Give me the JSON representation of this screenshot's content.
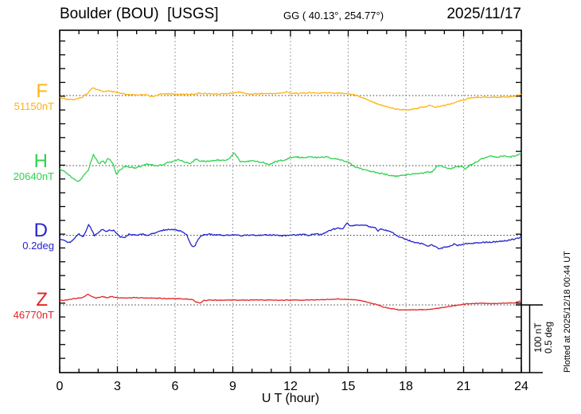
{
  "header": {
    "title": "Boulder (BOU)  [USGS]",
    "coords": "GG ( 40.13°, 254.77°)",
    "date": "2025/11/17"
  },
  "footer_note": "Plotted at 2025/12/18 00:44 UT",
  "chart_data": {
    "type": "line",
    "title": "Boulder (BOU) [USGS] magnetogram 2025/11/17",
    "xlabel": "U T (hour)",
    "x_range": [
      0,
      24
    ],
    "x_major_ticks": [
      0,
      3,
      6,
      9,
      12,
      15,
      18,
      21,
      24
    ],
    "x_tick_labels": [
      "0",
      "3",
      "6",
      "9",
      "12",
      "15",
      "18",
      "21",
      "24"
    ],
    "grid_hours": [
      3,
      6,
      9,
      12,
      15,
      18,
      21
    ],
    "y_tick_interval_nT": 20,
    "scale_bar": {
      "labels": [
        "100 nT",
        "0.5 deg"
      ],
      "nT": 100,
      "deg": 0.5
    },
    "channels": [
      {
        "id": "F",
        "label": "F",
        "baseline_label": "51150nT",
        "baseline_value": 51150,
        "unit": "nT",
        "color": "#ffb312",
        "points": [
          [
            0,
            -2.9
          ],
          [
            0.4,
            -5.3
          ],
          [
            0.8,
            -5.9
          ],
          [
            1.1,
            -3.5
          ],
          [
            1.4,
            2.4
          ],
          [
            1.7,
            11.8
          ],
          [
            1.9,
            9.4
          ],
          [
            2.2,
            5.9
          ],
          [
            2.5,
            6.5
          ],
          [
            2.8,
            5.3
          ],
          [
            3.1,
            3.5
          ],
          [
            3.5,
            1.2
          ],
          [
            4,
            0.6
          ],
          [
            4.4,
            1.8
          ],
          [
            4.8,
            -1.8
          ],
          [
            5.2,
            1.8
          ],
          [
            5.6,
            2.9
          ],
          [
            6,
            1.8
          ],
          [
            6.5,
            1.8
          ],
          [
            7,
            2.4
          ],
          [
            7.4,
            3.5
          ],
          [
            7.8,
            2.4
          ],
          [
            8.2,
            2.4
          ],
          [
            8.6,
            2.9
          ],
          [
            9,
            3.5
          ],
          [
            9.4,
            5.3
          ],
          [
            9.7,
            2.4
          ],
          [
            10,
            2.4
          ],
          [
            10.5,
            2.9
          ],
          [
            11,
            2.9
          ],
          [
            11.5,
            3.5
          ],
          [
            11.8,
            5.3
          ],
          [
            12,
            3.5
          ],
          [
            12.5,
            3.5
          ],
          [
            13,
            4.1
          ],
          [
            13.5,
            3.5
          ],
          [
            14,
            4.1
          ],
          [
            14.5,
            3.5
          ],
          [
            15,
            2.9
          ],
          [
            15.3,
            1.2
          ],
          [
            15.6,
            -1.2
          ],
          [
            16,
            -5.9
          ],
          [
            16.5,
            -11.8
          ],
          [
            17,
            -16.5
          ],
          [
            17.4,
            -19.4
          ],
          [
            17.8,
            -21.2
          ],
          [
            18.2,
            -20.6
          ],
          [
            18.6,
            -18.8
          ],
          [
            19,
            -16.5
          ],
          [
            19.2,
            -14.7
          ],
          [
            19.5,
            -17.1
          ],
          [
            19.9,
            -15.3
          ],
          [
            20.3,
            -12.4
          ],
          [
            20.7,
            -8.8
          ],
          [
            21.1,
            -5.6
          ],
          [
            21.5,
            -2.9
          ],
          [
            22,
            -2.1
          ],
          [
            22.4,
            -2.7
          ],
          [
            22.8,
            -2.4
          ],
          [
            23.2,
            -1.8
          ],
          [
            23.6,
            -1.2
          ],
          [
            24,
            2.4
          ]
        ]
      },
      {
        "id": "H",
        "label": "H",
        "baseline_label": "20640nT",
        "baseline_value": 20640,
        "unit": "nT",
        "color": "#2fd24f",
        "points": [
          [
            0,
            -4.7
          ],
          [
            0.3,
            -9.4
          ],
          [
            0.6,
            -16.5
          ],
          [
            0.9,
            -23.5
          ],
          [
            1.1,
            -20
          ],
          [
            1.3,
            -11.8
          ],
          [
            1.5,
            -7.1
          ],
          [
            1.6,
            3.5
          ],
          [
            1.75,
            16.5
          ],
          [
            1.9,
            9.4
          ],
          [
            2.05,
            2.4
          ],
          [
            2.2,
            7.1
          ],
          [
            2.35,
            3.5
          ],
          [
            2.5,
            10.6
          ],
          [
            2.65,
            7.1
          ],
          [
            2.8,
            0
          ],
          [
            2.95,
            -12.9
          ],
          [
            3.1,
            -7.1
          ],
          [
            3.3,
            -2.4
          ],
          [
            3.5,
            -1.2
          ],
          [
            3.7,
            -2.4
          ],
          [
            3.9,
            -3.5
          ],
          [
            4.1,
            -2.4
          ],
          [
            4.3,
            0
          ],
          [
            4.5,
            2.4
          ],
          [
            4.7,
            1.2
          ],
          [
            5,
            0
          ],
          [
            5.3,
            1.2
          ],
          [
            5.6,
            4.7
          ],
          [
            5.9,
            5.9
          ],
          [
            6.2,
            9.4
          ],
          [
            6.5,
            4.7
          ],
          [
            6.8,
            2.4
          ],
          [
            7.1,
            10.6
          ],
          [
            7.3,
            7.1
          ],
          [
            7.6,
            5.9
          ],
          [
            7.9,
            7.1
          ],
          [
            8.2,
            8.2
          ],
          [
            8.5,
            8.2
          ],
          [
            8.8,
            9.4
          ],
          [
            9.05,
            18.8
          ],
          [
            9.2,
            14.1
          ],
          [
            9.4,
            5.9
          ],
          [
            9.7,
            5.9
          ],
          [
            10,
            7.1
          ],
          [
            10.3,
            5.9
          ],
          [
            10.6,
            4.7
          ],
          [
            10.9,
            1.2
          ],
          [
            11.1,
            4.7
          ],
          [
            11.4,
            7.1
          ],
          [
            11.7,
            8.2
          ],
          [
            12,
            11.8
          ],
          [
            12.3,
            12.9
          ],
          [
            12.6,
            11.8
          ],
          [
            13,
            12.9
          ],
          [
            13.4,
            11.8
          ],
          [
            13.8,
            12.9
          ],
          [
            14.2,
            10.6
          ],
          [
            14.6,
            8.2
          ],
          [
            15,
            4.7
          ],
          [
            15.2,
            1.2
          ],
          [
            15.5,
            -3.5
          ],
          [
            16,
            -7.1
          ],
          [
            16.5,
            -10.6
          ],
          [
            17,
            -13.5
          ],
          [
            17.4,
            -15.9
          ],
          [
            17.8,
            -14.7
          ],
          [
            18.2,
            -12.9
          ],
          [
            18.6,
            -11.8
          ],
          [
            19,
            -10.6
          ],
          [
            19.4,
            -8.8
          ],
          [
            19.6,
            -1.2
          ],
          [
            19.8,
            -0.6
          ],
          [
            20,
            -2.9
          ],
          [
            20.3,
            -4.7
          ],
          [
            20.6,
            -2.4
          ],
          [
            20.9,
            -1.2
          ],
          [
            21.1,
            -4.7
          ],
          [
            21.3,
            0
          ],
          [
            21.6,
            4.7
          ],
          [
            21.9,
            9.4
          ],
          [
            22.2,
            12.9
          ],
          [
            22.5,
            14.1
          ],
          [
            22.8,
            12.4
          ],
          [
            23.1,
            14.7
          ],
          [
            23.4,
            12.9
          ],
          [
            23.7,
            14.1
          ],
          [
            24,
            18.8
          ]
        ]
      },
      {
        "id": "D",
        "label": "D",
        "baseline_label": "0.2deg",
        "baseline_value": 0.2,
        "unit": "deg",
        "color": "#2323cc",
        "points": [
          [
            0,
            -0.026
          ],
          [
            0.3,
            -0.044
          ],
          [
            0.55,
            -0.056
          ],
          [
            0.8,
            -0.015
          ],
          [
            1,
            0.009
          ],
          [
            1.2,
            -0.012
          ],
          [
            1.35,
            0.021
          ],
          [
            1.5,
            0.079
          ],
          [
            1.65,
            0.044
          ],
          [
            1.8,
            -0.003
          ],
          [
            2,
            0.015
          ],
          [
            2.2,
            0.044
          ],
          [
            2.4,
            0.026
          ],
          [
            2.6,
            0.038
          ],
          [
            2.8,
            0.035
          ],
          [
            3,
            0.009
          ],
          [
            3.15,
            -0.012
          ],
          [
            3.4,
            -0.015
          ],
          [
            3.6,
            0.009
          ],
          [
            3.8,
            0.003
          ],
          [
            4,
            0
          ],
          [
            4.3,
            0.009
          ],
          [
            4.6,
            0
          ],
          [
            4.9,
            0.015
          ],
          [
            5.2,
            0.032
          ],
          [
            5.5,
            0.041
          ],
          [
            5.8,
            0.044
          ],
          [
            6.1,
            0.038
          ],
          [
            6.4,
            0.026
          ],
          [
            6.6,
            0.003
          ],
          [
            6.75,
            -0.044
          ],
          [
            6.9,
            -0.085
          ],
          [
            7.05,
            -0.074
          ],
          [
            7.2,
            -0.026
          ],
          [
            7.35,
            -0.003
          ],
          [
            7.5,
            0.003
          ],
          [
            7.8,
            0.006
          ],
          [
            8.1,
            0.003
          ],
          [
            8.5,
            0
          ],
          [
            9,
            0.003
          ],
          [
            9.5,
            -0.003
          ],
          [
            10,
            0.003
          ],
          [
            10.5,
            0
          ],
          [
            11,
            0.003
          ],
          [
            11.5,
            -0.003
          ],
          [
            12,
            0
          ],
          [
            12.3,
            0.003
          ],
          [
            12.6,
            0.006
          ],
          [
            13,
            0
          ],
          [
            13.3,
            0.012
          ],
          [
            13.6,
            0.003
          ],
          [
            13.9,
            0.026
          ],
          [
            14.2,
            0.044
          ],
          [
            14.5,
            0.053
          ],
          [
            14.7,
            0.044
          ],
          [
            14.95,
            0.091
          ],
          [
            15.1,
            0.068
          ],
          [
            15.3,
            0.074
          ],
          [
            15.5,
            0.076
          ],
          [
            15.8,
            0.074
          ],
          [
            16.1,
            0.065
          ],
          [
            16.4,
            0.056
          ],
          [
            16.55,
            0.032
          ],
          [
            16.7,
            0.047
          ],
          [
            17,
            0.035
          ],
          [
            17.3,
            0.018
          ],
          [
            17.6,
            -0.009
          ],
          [
            17.9,
            -0.026
          ],
          [
            18.2,
            -0.041
          ],
          [
            18.5,
            -0.053
          ],
          [
            18.8,
            -0.062
          ],
          [
            19,
            -0.071
          ],
          [
            19.15,
            -0.079
          ],
          [
            19.3,
            -0.071
          ],
          [
            19.5,
            -0.079
          ],
          [
            19.7,
            -0.1
          ],
          [
            19.9,
            -0.094
          ],
          [
            20.1,
            -0.085
          ],
          [
            20.4,
            -0.076
          ],
          [
            20.5,
            -0.065
          ],
          [
            20.7,
            -0.074
          ],
          [
            21,
            -0.065
          ],
          [
            21.3,
            -0.059
          ],
          [
            21.7,
            -0.056
          ],
          [
            22,
            -0.053
          ],
          [
            22.4,
            -0.05
          ],
          [
            22.8,
            -0.047
          ],
          [
            23.2,
            -0.041
          ],
          [
            23.6,
            -0.029
          ],
          [
            24,
            -0.015
          ]
        ]
      },
      {
        "id": "Z",
        "label": "Z",
        "baseline_label": "46770nT",
        "baseline_value": 46770,
        "unit": "nT",
        "color": "#e32222",
        "points": [
          [
            0,
            6.5
          ],
          [
            0.4,
            7.6
          ],
          [
            0.8,
            9.4
          ],
          [
            1.2,
            11.2
          ],
          [
            1.5,
            15.9
          ],
          [
            1.7,
            11.8
          ],
          [
            1.9,
            10
          ],
          [
            2.2,
            12.4
          ],
          [
            2.5,
            10.6
          ],
          [
            2.7,
            12.4
          ],
          [
            3,
            10.6
          ],
          [
            3.4,
            10
          ],
          [
            3.8,
            10.6
          ],
          [
            4.2,
            10.6
          ],
          [
            4.6,
            10
          ],
          [
            5,
            10
          ],
          [
            5.5,
            9.4
          ],
          [
            6,
            9.4
          ],
          [
            6.5,
            8.8
          ],
          [
            6.9,
            8.2
          ],
          [
            7.1,
            4.1
          ],
          [
            7.3,
            2.9
          ],
          [
            7.5,
            6.5
          ],
          [
            7.8,
            7.1
          ],
          [
            8.2,
            7.1
          ],
          [
            8.6,
            7.1
          ],
          [
            9,
            7.1
          ],
          [
            9.5,
            7.1
          ],
          [
            10,
            7.1
          ],
          [
            10.5,
            7.1
          ],
          [
            11,
            7.1
          ],
          [
            11.5,
            7.1
          ],
          [
            12,
            7.1
          ],
          [
            12.5,
            7.1
          ],
          [
            13,
            7.6
          ],
          [
            13.5,
            7.6
          ],
          [
            14,
            8.2
          ],
          [
            14.5,
            8.8
          ],
          [
            15,
            8.2
          ],
          [
            15.5,
            7.1
          ],
          [
            16,
            4.1
          ],
          [
            16.4,
            1.2
          ],
          [
            16.8,
            -2.9
          ],
          [
            17.2,
            -5.3
          ],
          [
            17.6,
            -7.1
          ],
          [
            18,
            -7.6
          ],
          [
            18.4,
            -7.1
          ],
          [
            18.8,
            -7.1
          ],
          [
            19.2,
            -6.5
          ],
          [
            19.6,
            -5.3
          ],
          [
            20,
            -3.5
          ],
          [
            20.4,
            -1.8
          ],
          [
            20.8,
            0
          ],
          [
            21.2,
            1.8
          ],
          [
            21.6,
            2.4
          ],
          [
            22,
            2.4
          ],
          [
            22.4,
            1.8
          ],
          [
            22.8,
            2.4
          ],
          [
            23.2,
            2.4
          ],
          [
            23.6,
            2.9
          ],
          [
            24,
            5.9
          ]
        ]
      }
    ]
  }
}
